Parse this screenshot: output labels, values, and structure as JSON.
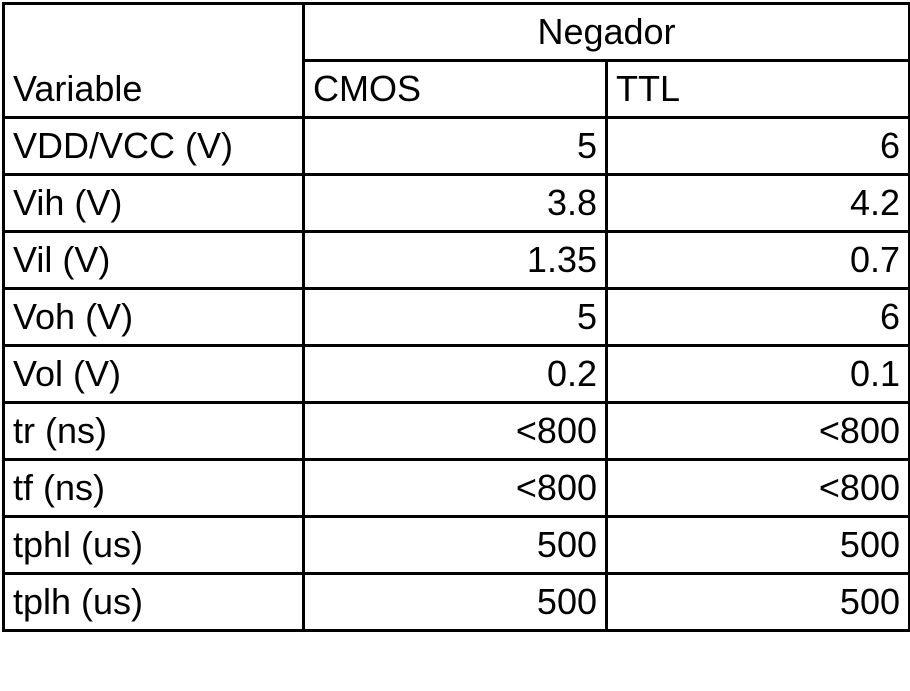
{
  "table": {
    "variable_header": "Variable",
    "group_header": "Negador",
    "columns": [
      "CMOS",
      "TTL"
    ],
    "rows": [
      {
        "label": "VDD/VCC (V)",
        "cmos": "5",
        "ttl": "6"
      },
      {
        "label": "Vih (V)",
        "cmos": "3.8",
        "ttl": "4.2"
      },
      {
        "label": "Vil (V)",
        "cmos": "1.35",
        "ttl": "0.7"
      },
      {
        "label": "Voh (V)",
        "cmos": "5",
        "ttl": "6"
      },
      {
        "label": "Vol (V)",
        "cmos": "0.2",
        "ttl": "0.1"
      },
      {
        "label": "tr (ns)",
        "cmos": "<800",
        "ttl": "<800"
      },
      {
        "label": "tf (ns)",
        "cmos": "<800",
        "ttl": "<800"
      },
      {
        "label": "tphl (us)",
        "cmos": "500",
        "ttl": "500"
      },
      {
        "label": "tplh (us)",
        "cmos": "500",
        "ttl": "500"
      }
    ]
  }
}
